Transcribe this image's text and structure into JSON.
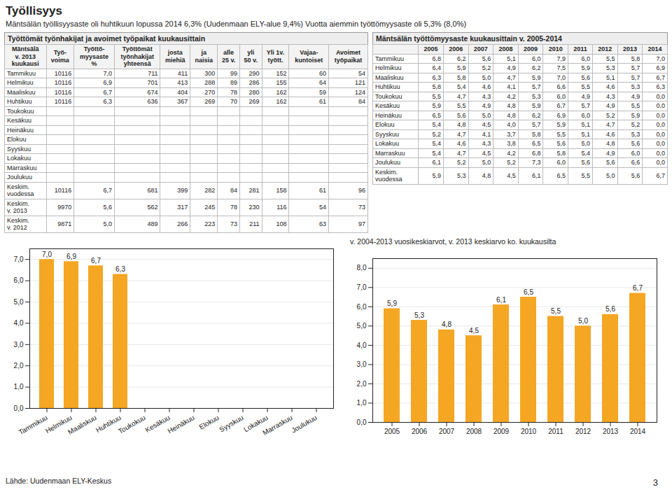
{
  "title": "Työllisyys",
  "subtitle": "Mäntsälän työllisyysaste oli huhtikuun lopussa 2014 6,3% (Uudenmaan ELY-alue 9,4%) Vuotta aiemmin työttömyysaste oli 5,3% (8,0%)",
  "caption": "Lähde: Uudenmaan ELY-Keskus",
  "annotations": [
    "3"
  ],
  "chart_data": [
    {
      "type": "table",
      "title": "Työttömät työnhakijat ja avoimet työpaikat kuukausittain",
      "ylabel": "Mäntsälä\nv. 2013\nkuukausi",
      "categories": [
        "Tammikuu",
        "Helmikuu",
        "Maaliskuu",
        "Huhtikuu",
        "Toukokuu",
        "Kesäkuu",
        "Heinäkuu",
        "Elokuu",
        "Syyskuu",
        "Lokakuu",
        "Marraskuu",
        "Joulukuu",
        "Keskim.\nvuodessa",
        "Keskim.\nv. 2013",
        "Keskim.\nv. 2012"
      ],
      "series": [
        {
          "name": "Työ-\nvoima",
          "values": [
            10116,
            10116,
            10116,
            10116,
            null,
            null,
            null,
            null,
            null,
            null,
            null,
            null,
            10116,
            9970,
            9871
          ]
        },
        {
          "name": "Työttö-\nmyysaste\n%",
          "values": [
            7.0,
            6.9,
            6.7,
            6.3,
            null,
            null,
            null,
            null,
            null,
            null,
            null,
            null,
            6.7,
            5.6,
            5.0
          ],
          "value_labels": [
            "7,0",
            "6,9",
            "6,7",
            "6,3",
            null,
            null,
            null,
            null,
            null,
            null,
            null,
            null,
            "6,7",
            "5,6",
            "5,0"
          ]
        },
        {
          "name": "Työttömät\ntyönhakijat\nyhteensä",
          "values": [
            711,
            701,
            674,
            636,
            null,
            null,
            null,
            null,
            null,
            null,
            null,
            null,
            681,
            562,
            489
          ]
        },
        {
          "name": "josta\nmiehiä",
          "values": [
            411,
            413,
            404,
            367,
            null,
            null,
            null,
            null,
            null,
            null,
            null,
            null,
            399,
            317,
            266
          ]
        },
        {
          "name": "ja\nnaisia",
          "values": [
            300,
            288,
            270,
            269,
            null,
            null,
            null,
            null,
            null,
            null,
            null,
            null,
            282,
            245,
            223
          ]
        },
        {
          "name": "alle\n25 v.",
          "values": [
            99,
            89,
            78,
            70,
            null,
            null,
            null,
            null,
            null,
            null,
            null,
            null,
            84,
            78,
            73
          ]
        },
        {
          "name": "yli\n50 v.",
          "values": [
            290,
            286,
            280,
            269,
            null,
            null,
            null,
            null,
            null,
            null,
            null,
            null,
            281,
            230,
            211
          ]
        },
        {
          "name": "Yli 1v.\ntyött.",
          "values": [
            152,
            155,
            162,
            162,
            null,
            null,
            null,
            null,
            null,
            null,
            null,
            null,
            158,
            116,
            108
          ]
        },
        {
          "name": "Vajaa-\nkuntoiset",
          "values": [
            60,
            64,
            59,
            61,
            null,
            null,
            null,
            null,
            null,
            null,
            null,
            null,
            61,
            54,
            63
          ]
        },
        {
          "name": "Avoimet\ntyöpaikat",
          "values": [
            54,
            121,
            124,
            84,
            null,
            null,
            null,
            null,
            null,
            null,
            null,
            null,
            96,
            73,
            97
          ]
        }
      ]
    },
    {
      "type": "table",
      "title": "Mäntsälän työttömyysaste kuukausittain v. 2005-2014",
      "categories": [
        "Tammikuu",
        "Helmikuu",
        "Maaliskuu",
        "Huhtikuu",
        "Toukokuu",
        "Kesäkuu",
        "Heinäkuu",
        "Elokuu",
        "Syyskuu",
        "Lokakuu",
        "Marraskuu",
        "Joulukuu",
        "Keskim.\nvuodessa"
      ],
      "series": [
        {
          "name": "2005",
          "values": [
            6.8,
            6.4,
            6.3,
            5.8,
            5.5,
            5.9,
            6.5,
            5.4,
            5.2,
            5.4,
            5.4,
            6.1,
            5.9
          ],
          "value_labels": [
            "6,8",
            "6,4",
            "6,3",
            "5,8",
            "5,5",
            "5,9",
            "6,5",
            "5,4",
            "5,2",
            "5,4",
            "5,4",
            "6,1",
            "5,9"
          ]
        },
        {
          "name": "2006",
          "values": [
            6.2,
            5.9,
            5.8,
            5.4,
            4.7,
            5.5,
            5.6,
            4.8,
            4.7,
            4.6,
            4.7,
            5.2,
            5.3
          ],
          "value_labels": [
            "6,2",
            "5,9",
            "5,8",
            "5,4",
            "4,7",
            "5,5",
            "5,6",
            "4,8",
            "4,7",
            "4,6",
            "4,7",
            "5,2",
            "5,3"
          ]
        },
        {
          "name": "2007",
          "values": [
            5.6,
            5.2,
            5.0,
            4.6,
            4.3,
            4.9,
            5.0,
            4.5,
            4.1,
            4.3,
            4.5,
            5.0,
            4.8
          ],
          "value_labels": [
            "5,6",
            "5,2",
            "5,0",
            "4,6",
            "4,3",
            "4,9",
            "5,0",
            "4,5",
            "4,1",
            "4,3",
            "4,5",
            "5,0",
            "4,8"
          ]
        },
        {
          "name": "2008",
          "values": [
            5.1,
            4.9,
            4.7,
            4.1,
            4.2,
            4.8,
            4.8,
            4.0,
            3.7,
            3.8,
            4.2,
            5.2,
            4.5
          ],
          "value_labels": [
            "5,1",
            "4,9",
            "4,7",
            "4,1",
            "4,2",
            "4,8",
            "4,8",
            "4,0",
            "3,7",
            "3,8",
            "4,2",
            "5,2",
            "4,5"
          ]
        },
        {
          "name": "2009",
          "values": [
            6.0,
            6.2,
            5.9,
            5.7,
            5.3,
            5.9,
            6.2,
            5.7,
            5.8,
            6.5,
            6.8,
            7.3,
            6.1
          ],
          "value_labels": [
            "6,0",
            "6,2",
            "5,9",
            "5,7",
            "5,3",
            "5,9",
            "6,2",
            "5,7",
            "5,8",
            "6,5",
            "6,8",
            "7,3",
            "6,1"
          ]
        },
        {
          "name": "2010",
          "values": [
            7.9,
            7.5,
            7.0,
            6.6,
            6.0,
            6.7,
            6.9,
            5.9,
            5.5,
            5.6,
            5.8,
            6.0,
            6.5
          ],
          "value_labels": [
            "7,9",
            "7,5",
            "7,0",
            "6,6",
            "6,0",
            "6,7",
            "6,9",
            "5,9",
            "5,5",
            "5,6",
            "5,8",
            "6,0",
            "6,5"
          ]
        },
        {
          "name": "2011",
          "values": [
            6.0,
            5.9,
            5.6,
            5.5,
            4.9,
            5.7,
            6.0,
            5.1,
            5.1,
            5.0,
            5.4,
            5.6,
            5.5
          ],
          "value_labels": [
            "6,0",
            "5,9",
            "5,6",
            "5,5",
            "4,9",
            "5,7",
            "6,0",
            "5,1",
            "5,1",
            "5,0",
            "5,4",
            "5,6",
            "5,5"
          ]
        },
        {
          "name": "2012",
          "values": [
            5.5,
            5.3,
            5.1,
            4.6,
            4.3,
            4.9,
            5.2,
            4.7,
            4.6,
            4.8,
            4.9,
            5.6,
            5.0
          ],
          "value_labels": [
            "5,5",
            "5,3",
            "5,1",
            "4,6",
            "4,3",
            "4,9",
            "5,2",
            "4,7",
            "4,6",
            "4,8",
            "4,9",
            "5,6",
            "5,0"
          ]
        },
        {
          "name": "2013",
          "values": [
            5.8,
            5.7,
            5.7,
            5.3,
            4.9,
            5.5,
            5.9,
            5.2,
            5.3,
            5.6,
            6.0,
            6.6,
            5.6
          ],
          "value_labels": [
            "5,8",
            "5,7",
            "5,7",
            "5,3",
            "4,9",
            "5,5",
            "5,9",
            "5,2",
            "5,3",
            "5,6",
            "6,0",
            "6,6",
            "5,6"
          ]
        },
        {
          "name": "2014",
          "values": [
            7.0,
            6.9,
            6.7,
            6.3,
            0,
            0,
            0,
            0,
            0,
            0,
            0,
            0,
            6.7
          ],
          "value_labels": [
            "7,0",
            "6,9",
            "6,7",
            "6,3",
            "0,0",
            "0,0",
            "0,0",
            "0,0",
            "0,0",
            "0,0",
            "0,0",
            "0,0",
            "6,7"
          ]
        }
      ]
    },
    {
      "type": "bar",
      "categories": [
        "Tammikuu",
        "Helmikuu",
        "Maaliskuu",
        "Huhtikuu",
        "Toukokuu",
        "Kesäkuu",
        "Heinäkuu",
        "Elokuu",
        "Syyskuu",
        "Lokakuu",
        "Marraskuu",
        "Joulukuu"
      ],
      "values": [
        7.0,
        6.9,
        6.7,
        6.3,
        0,
        0,
        0,
        0,
        0,
        0,
        0,
        0
      ],
      "value_labels": [
        "7,0",
        "6,9",
        "6,7",
        "6,3",
        null,
        null,
        null,
        null,
        null,
        null,
        null,
        null
      ],
      "color": "#F5A623",
      "ylim": [
        0,
        7.5
      ],
      "yticks": [
        {
          "value": 0,
          "label": "0,0"
        },
        {
          "value": 1,
          "label": "1,0"
        },
        {
          "value": 2,
          "label": "2,0"
        },
        {
          "value": 3,
          "label": "3,0"
        },
        {
          "value": 4,
          "label": "4,0"
        },
        {
          "value": 5,
          "label": "5,0"
        },
        {
          "value": 6,
          "label": "6,0"
        },
        {
          "value": 7,
          "label": "7,0"
        }
      ],
      "grid": true,
      "data_labels": true
    },
    {
      "type": "bar",
      "subtitle": "v. 2004-2013 vuosikeskiarvot, v. 2013 keskiarvo ko. kuukausilta",
      "categories": [
        "2005",
        "2006",
        "2007",
        "2008",
        "2009",
        "2010",
        "2011",
        "2012",
        "2013",
        "2014"
      ],
      "values": [
        5.9,
        5.3,
        4.8,
        4.5,
        6.1,
        6.5,
        5.5,
        5.0,
        5.6,
        6.7
      ],
      "value_labels": [
        "5,9",
        "5,3",
        "4,8",
        "4,5",
        "6,1",
        "6,5",
        "5,5",
        "5,0",
        "5,6",
        "6,7"
      ],
      "color": "#F5A623",
      "ylim": [
        0,
        8.5
      ],
      "yticks": [
        {
          "value": 0,
          "label": "0,0"
        },
        {
          "value": 1,
          "label": "1,0"
        },
        {
          "value": 2,
          "label": "2,0"
        },
        {
          "value": 3,
          "label": "3,0"
        },
        {
          "value": 4,
          "label": "4,0"
        },
        {
          "value": 5,
          "label": "5,0"
        },
        {
          "value": 6,
          "label": "6,0"
        },
        {
          "value": 7,
          "label": "7,0"
        },
        {
          "value": 8,
          "label": "8,0"
        }
      ],
      "grid": true,
      "data_labels": true
    }
  ]
}
